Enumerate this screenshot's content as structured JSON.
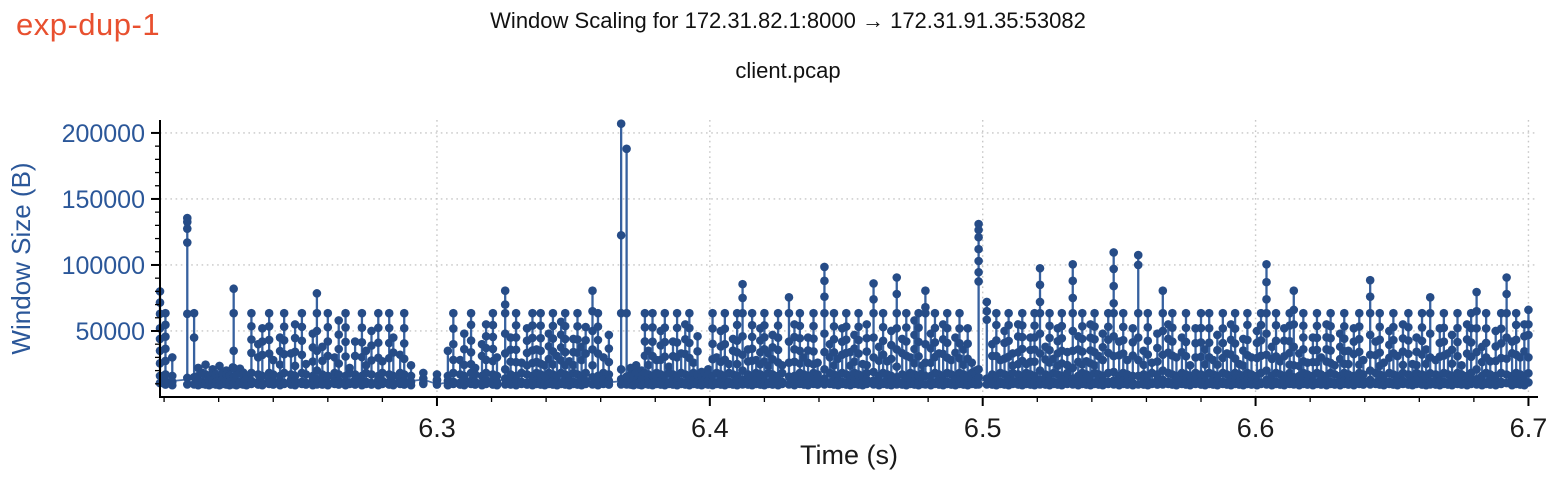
{
  "figure_label": "exp-dup-1",
  "chart_data": {
    "type": "line",
    "title": "Window Scaling for 172.31.82.1:8000 → 172.31.91.35:53082",
    "subtitle": "client.pcap",
    "xlabel": "Time (s)",
    "ylabel": "Window Size (B)",
    "xlim": [
      6.1985,
      6.7035
    ],
    "ylim": [
      0,
      209800
    ],
    "x_major_ticks": [
      6.3,
      6.4,
      6.5,
      6.6,
      6.7
    ],
    "x_minor_step": 0.02,
    "y_major_ticks": [
      50000,
      100000,
      150000,
      200000
    ],
    "y_minor_step": 10000,
    "grid": {
      "style": "dotted",
      "which": "major",
      "axes": "both"
    },
    "legend": "none",
    "marker": "circle",
    "base_window": 9800,
    "colors": {
      "series_line": "#37619f",
      "series_marker": "#264c87",
      "axis": "#000000",
      "x_tick_label": "#1a1a1a",
      "y_tick_label": "#2b5799",
      "grid": "#c7c7c7",
      "figure_label": "#e8502f",
      "background": "#ffffff"
    },
    "notable_peaks": [
      [
        6.2085,
        135500
      ],
      [
        6.3675,
        207000
      ],
      [
        6.3695,
        188000
      ],
      [
        6.442,
        98500
      ],
      [
        6.4985,
        131000
      ],
      [
        6.533,
        100500
      ],
      [
        6.548,
        109500
      ],
      [
        6.557,
        107500
      ],
      [
        6.604,
        100500
      ],
      [
        6.692,
        90500
      ]
    ],
    "stems": [
      [
        6.1985,
        80000,
        [
          80000,
          71500,
          63000,
          52000,
          44000,
          35000,
          25500,
          16000,
          10500
        ]
      ],
      [
        6.2005,
        63500
      ],
      [
        6.203,
        30000
      ],
      [
        6.2085,
        135500,
        [
          135500,
          132500,
          127500,
          117000,
          63000,
          14500,
          9500
        ]
      ],
      [
        6.211,
        63500,
        [
          63500,
          45000,
          15000,
          9500
        ]
      ],
      [
        6.2125,
        22000
      ],
      [
        6.214,
        18000
      ],
      [
        6.2152,
        24500
      ],
      [
        6.2165,
        16000
      ],
      [
        6.2178,
        21000
      ],
      [
        6.219,
        17500
      ],
      [
        6.2203,
        23500
      ],
      [
        6.2215,
        15500
      ],
      [
        6.2228,
        20000
      ],
      [
        6.224,
        17000
      ],
      [
        6.2252,
        22500
      ],
      [
        6.2255,
        82000,
        [
          82000,
          63500,
          35000,
          22000,
          15000,
          9500
        ]
      ],
      [
        6.2265,
        16500
      ],
      [
        6.2278,
        21500
      ],
      [
        6.229,
        18500
      ],
      [
        6.2302,
        15000
      ],
      [
        6.232,
        63500
      ],
      [
        6.2345,
        40000
      ],
      [
        6.236,
        52000
      ],
      [
        6.2385,
        63500
      ],
      [
        6.24,
        28000
      ],
      [
        6.2425,
        45000
      ],
      [
        6.244,
        63500
      ],
      [
        6.2465,
        33000
      ],
      [
        6.248,
        55000
      ],
      [
        6.2505,
        63500
      ],
      [
        6.252,
        25000
      ],
      [
        6.2545,
        48000
      ],
      [
        6.256,
        78500,
        [
          78500,
          63500,
          50000,
          35000,
          20000,
          13500,
          9500
        ]
      ],
      [
        6.258,
        38000
      ],
      [
        6.26,
        63500
      ],
      [
        6.2625,
        30000
      ],
      [
        6.264,
        58000
      ],
      [
        6.2665,
        63500
      ],
      [
        6.268,
        22000
      ],
      [
        6.27,
        42000
      ],
      [
        6.2725,
        63500
      ],
      [
        6.274,
        35000
      ],
      [
        6.276,
        50000
      ],
      [
        6.2785,
        63500
      ],
      [
        6.28,
        27000
      ],
      [
        6.2825,
        63500
      ],
      [
        6.284,
        45000
      ],
      [
        6.2865,
        32000
      ],
      [
        6.288,
        63500
      ],
      [
        6.2905,
        24000
      ],
      [
        6.295,
        14000
      ],
      [
        6.3,
        12500
      ],
      [
        6.304,
        35000
      ],
      [
        6.306,
        63500
      ],
      [
        6.3085,
        28000
      ],
      [
        6.31,
        48000
      ],
      [
        6.3125,
        63500
      ],
      [
        6.314,
        22000
      ],
      [
        6.3165,
        40000
      ],
      [
        6.318,
        55000
      ],
      [
        6.3205,
        63500
      ],
      [
        6.322,
        30000
      ],
      [
        6.325,
        80500,
        [
          80500,
          70000,
          63500,
          48000,
          33000,
          21000,
          14000,
          9500
        ]
      ],
      [
        6.327,
        45000
      ],
      [
        6.329,
        63500
      ],
      [
        6.331,
        26000
      ],
      [
        6.333,
        52000
      ],
      [
        6.335,
        63500
      ],
      [
        6.3365,
        36000
      ],
      [
        6.338,
        63500
      ],
      [
        6.3395,
        24000
      ],
      [
        6.341,
        48000
      ],
      [
        6.3425,
        63500
      ],
      [
        6.344,
        31000
      ],
      [
        6.3455,
        57000
      ],
      [
        6.347,
        63500
      ],
      [
        6.3485,
        27000
      ],
      [
        6.35,
        44000
      ],
      [
        6.3515,
        63500
      ],
      [
        6.353,
        38000
      ],
      [
        6.3545,
        53000
      ],
      [
        6.357,
        80500,
        [
          80500,
          65000,
          50000,
          36000,
          24000,
          15000,
          9500
        ]
      ],
      [
        6.359,
        63500
      ],
      [
        6.361,
        30000
      ],
      [
        6.363,
        47000
      ],
      [
        6.3675,
        207000,
        [
          207000,
          122500,
          63500,
          21000,
          13500,
          9500
        ]
      ],
      [
        6.3695,
        188000,
        [
          188000,
          63500,
          15500,
          9500
        ]
      ],
      [
        6.371,
        22000
      ],
      [
        6.372,
        17000
      ],
      [
        6.373,
        24000
      ],
      [
        6.374,
        16000
      ],
      [
        6.375,
        20000
      ],
      [
        6.3762,
        63500
      ],
      [
        6.3775,
        35000
      ],
      [
        6.379,
        63500
      ],
      [
        6.3805,
        28000
      ],
      [
        6.382,
        50000
      ],
      [
        6.3835,
        63500
      ],
      [
        6.385,
        23000
      ],
      [
        6.3865,
        42000
      ],
      [
        6.388,
        63500
      ],
      [
        6.3895,
        33000
      ],
      [
        6.391,
        55000
      ],
      [
        6.3925,
        63500
      ],
      [
        6.394,
        26000
      ],
      [
        6.3955,
        46000
      ],
      [
        6.397,
        19000
      ],
      [
        6.3982,
        17000
      ],
      [
        6.3994,
        21000
      ],
      [
        6.401,
        63500
      ],
      [
        6.4025,
        30000
      ],
      [
        6.404,
        50000
      ],
      [
        6.4055,
        63500
      ],
      [
        6.407,
        25000
      ],
      [
        6.4085,
        44000
      ],
      [
        6.41,
        63500
      ],
      [
        6.412,
        85500,
        [
          85500,
          75000,
          63500,
          46000,
          32000,
          20000,
          13000,
          9500
        ]
      ],
      [
        6.414,
        36000
      ],
      [
        6.4155,
        63500
      ],
      [
        6.417,
        28000
      ],
      [
        6.4185,
        52000
      ],
      [
        6.42,
        63500
      ],
      [
        6.4215,
        33000
      ],
      [
        6.423,
        47000
      ],
      [
        6.425,
        63500
      ],
      [
        6.4265,
        24000
      ],
      [
        6.429,
        75500,
        [
          75500,
          63500,
          42000,
          26000,
          15500,
          9500
        ]
      ],
      [
        6.431,
        55000
      ],
      [
        6.433,
        63500
      ],
      [
        6.4345,
        30000
      ],
      [
        6.436,
        45000
      ],
      [
        6.438,
        63500
      ],
      [
        6.4395,
        26000
      ],
      [
        6.442,
        98500,
        [
          98500,
          88000,
          76000,
          63500,
          48000,
          34000,
          21000,
          14000,
          9500
        ]
      ],
      [
        6.444,
        40000
      ],
      [
        6.4455,
        63500
      ],
      [
        6.447,
        29000
      ],
      [
        6.4485,
        52000
      ],
      [
        6.45,
        63500
      ],
      [
        6.4515,
        34000
      ],
      [
        6.453,
        47000
      ],
      [
        6.4545,
        63500
      ],
      [
        6.456,
        25000
      ],
      [
        6.4575,
        55000
      ],
      [
        6.46,
        86000,
        [
          86000,
          74000,
          63500,
          45000,
          30000,
          19000,
          12500,
          9500
        ]
      ],
      [
        6.462,
        38000
      ],
      [
        6.4635,
        63500
      ],
      [
        6.465,
        27000
      ],
      [
        6.4665,
        50000
      ],
      [
        6.4685,
        90500,
        [
          90500,
          78000,
          63500,
          52000,
          36000,
          23000,
          15000,
          9500
        ]
      ],
      [
        6.4705,
        44000
      ],
      [
        6.472,
        63500
      ],
      [
        6.4735,
        30000
      ],
      [
        6.475,
        58000
      ],
      [
        6.4765,
        63500
      ],
      [
        6.478,
        24000
      ],
      [
        6.479,
        80500,
        [
          80500,
          68000,
          63500,
          40000,
          26000,
          16000,
          9500
        ]
      ],
      [
        6.481,
        48000
      ],
      [
        6.4825,
        63500
      ],
      [
        6.484,
        33000
      ],
      [
        6.4855,
        55000
      ],
      [
        6.487,
        63500
      ],
      [
        6.4885,
        28000
      ],
      [
        6.49,
        45000
      ],
      [
        6.4915,
        63500
      ],
      [
        6.493,
        36000
      ],
      [
        6.4945,
        52000
      ],
      [
        6.496,
        26000
      ],
      [
        6.4975,
        20000
      ],
      [
        6.4985,
        131000,
        [
          131000,
          126500,
          121000,
          112000,
          103000,
          94500,
          87500,
          21000,
          15000,
          9500
        ]
      ],
      [
        6.5015,
        72000,
        [
          72000,
          65000,
          58500,
          14000,
          9500
        ]
      ],
      [
        6.5035,
        40000
      ],
      [
        6.505,
        63500
      ],
      [
        6.5065,
        28000
      ],
      [
        6.508,
        50000
      ],
      [
        6.5095,
        63500
      ],
      [
        6.511,
        33000
      ],
      [
        6.513,
        55000
      ],
      [
        6.5145,
        63500
      ],
      [
        6.516,
        25000
      ],
      [
        6.5175,
        45000
      ],
      [
        6.519,
        63500
      ],
      [
        6.521,
        97500,
        [
          97500,
          85000,
          72000,
          63500,
          48000,
          33000,
          20000,
          13000,
          9500
        ]
      ],
      [
        6.523,
        38000
      ],
      [
        6.5245,
        63500
      ],
      [
        6.526,
        29000
      ],
      [
        6.5275,
        52000
      ],
      [
        6.529,
        63500
      ],
      [
        6.531,
        34000
      ],
      [
        6.533,
        100500,
        [
          100500,
          88000,
          75000,
          63500,
          50000,
          35000,
          22000,
          14000,
          9500
        ]
      ],
      [
        6.535,
        46000
      ],
      [
        6.5365,
        63500
      ],
      [
        6.538,
        27000
      ],
      [
        6.5395,
        55000
      ],
      [
        6.541,
        63500
      ],
      [
        6.5425,
        31000
      ],
      [
        6.544,
        48000
      ],
      [
        6.546,
        63500
      ],
      [
        6.548,
        109500,
        [
          109500,
          97000,
          84000,
          71000,
          63500,
          46000,
          31000,
          19000,
          12500,
          9500
        ]
      ],
      [
        6.55,
        42000
      ],
      [
        6.5515,
        63500
      ],
      [
        6.553,
        28000
      ],
      [
        6.555,
        52000
      ],
      [
        6.557,
        107500,
        [
          107500,
          100000,
          63500,
          45000,
          28000,
          16000,
          9500
        ]
      ],
      [
        6.559,
        35000
      ],
      [
        6.5605,
        63500
      ],
      [
        6.562,
        26000
      ],
      [
        6.564,
        48000
      ],
      [
        6.566,
        80500,
        [
          80500,
          63500,
          50000,
          32000,
          20000,
          13000,
          9500
        ]
      ],
      [
        6.568,
        55000
      ],
      [
        6.5695,
        63500
      ],
      [
        6.571,
        30000
      ],
      [
        6.573,
        45000
      ],
      [
        6.5745,
        63500
      ],
      [
        6.576,
        24000
      ],
      [
        6.578,
        52000
      ],
      [
        6.58,
        63500
      ],
      [
        6.5815,
        36000
      ],
      [
        6.583,
        63500
      ],
      [
        6.5845,
        28000
      ],
      [
        6.586,
        47000
      ],
      [
        6.588,
        63500
      ],
      [
        6.5895,
        33000
      ],
      [
        6.591,
        55000
      ],
      [
        6.5925,
        63500
      ],
      [
        6.594,
        25000
      ],
      [
        6.5955,
        44000
      ],
      [
        6.597,
        63500
      ],
      [
        6.5985,
        30000
      ],
      [
        6.6005,
        50000
      ],
      [
        6.602,
        63500
      ],
      [
        6.604,
        100500,
        [
          100500,
          87000,
          74000,
          63500,
          48000,
          32000,
          20000,
          13000,
          9500
        ]
      ],
      [
        6.606,
        38000
      ],
      [
        6.6075,
        63500
      ],
      [
        6.609,
        27000
      ],
      [
        6.6105,
        52000
      ],
      [
        6.6125,
        63500
      ],
      [
        6.614,
        80500,
        [
          80500,
          66000,
          55000,
          38000,
          24000,
          15000,
          9500
        ]
      ],
      [
        6.616,
        33000
      ],
      [
        6.6175,
        63500
      ],
      [
        6.619,
        26000
      ],
      [
        6.621,
        45000
      ],
      [
        6.6225,
        63500
      ],
      [
        6.624,
        30000
      ],
      [
        6.626,
        55000
      ],
      [
        6.6275,
        63500
      ],
      [
        6.629,
        24000
      ],
      [
        6.631,
        48000
      ],
      [
        6.6325,
        63500
      ],
      [
        6.634,
        35000
      ],
      [
        6.636,
        52000
      ],
      [
        6.638,
        63500
      ],
      [
        6.6395,
        28000
      ],
      [
        6.642,
        88500,
        [
          88500,
          76000,
          63500,
          47000,
          32000,
          20000,
          13000,
          9500
        ]
      ],
      [
        6.644,
        42000
      ],
      [
        6.6455,
        63500
      ],
      [
        6.647,
        26000
      ],
      [
        6.649,
        50000
      ],
      [
        6.6505,
        63500
      ],
      [
        6.652,
        31000
      ],
      [
        6.654,
        55000
      ],
      [
        6.656,
        63500
      ],
      [
        6.6575,
        25000
      ],
      [
        6.659,
        45000
      ],
      [
        6.661,
        63500
      ],
      [
        6.6625,
        36000
      ],
      [
        6.664,
        75500,
        [
          75500,
          63500,
          48000,
          30000,
          18000,
          12000,
          9500
        ]
      ],
      [
        6.666,
        28000
      ],
      [
        6.6675,
        52000
      ],
      [
        6.669,
        63500
      ],
      [
        6.6705,
        33000
      ],
      [
        6.672,
        47000
      ],
      [
        6.674,
        63500
      ],
      [
        6.6755,
        24000
      ],
      [
        6.6775,
        55000
      ],
      [
        6.679,
        63500
      ],
      [
        6.681,
        79500,
        [
          79500,
          65000,
          52000,
          34000,
          21000,
          13500,
          9500
        ]
      ],
      [
        6.683,
        38000
      ],
      [
        6.6845,
        63500
      ],
      [
        6.686,
        27000
      ],
      [
        6.688,
        50000
      ],
      [
        6.69,
        63500
      ],
      [
        6.692,
        90500,
        [
          90500,
          78000,
          63500,
          45000,
          29000,
          17000,
          10500
        ]
      ],
      [
        6.694,
        42000
      ],
      [
        6.6955,
        63500
      ],
      [
        6.697,
        30000
      ],
      [
        6.6985,
        55000
      ],
      [
        6.7,
        66000,
        [
          66000,
          55000,
          47000,
          30000,
          18000,
          11000
        ]
      ]
    ]
  }
}
